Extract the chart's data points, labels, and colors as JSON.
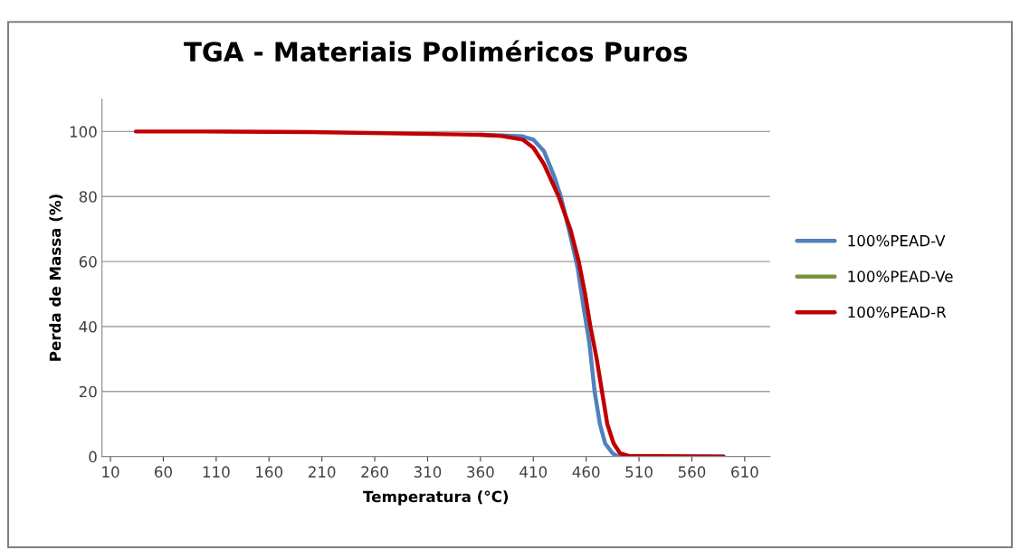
{
  "chart_data": {
    "type": "line",
    "title": "TGA - Materiais Poliméricos Puros",
    "xlabel": "Temperatura (°C)",
    "ylabel": "Perda de Massa (%)",
    "xlim": [
      2,
      634
    ],
    "xticks": [
      10,
      60,
      110,
      160,
      210,
      260,
      310,
      360,
      410,
      460,
      510,
      560,
      610
    ],
    "ylim": [
      0,
      110
    ],
    "yticks": [
      0,
      20,
      40,
      60,
      80,
      100
    ],
    "grid": "y",
    "legend": "right",
    "marker": "none",
    "line_style": "solid",
    "series": [
      {
        "name": "100%PEAD-V",
        "color": "#4f81bd",
        "x": [
          360,
          380,
          400,
          410,
          420,
          430,
          436,
          445,
          452,
          458,
          463,
          468,
          473,
          478,
          485,
          490,
          590
        ],
        "values": [
          99,
          98.8,
          98.5,
          97.5,
          94,
          86,
          80,
          68,
          58,
          45,
          35,
          20,
          10,
          4,
          1,
          0,
          0
        ]
      },
      {
        "name": "100%PEAD-Ve",
        "color": "#77933c"
      },
      {
        "name": "100%PEAD-R",
        "color": "#c00000",
        "x": [
          34,
          100,
          200,
          300,
          360,
          380,
          400,
          410,
          420,
          434,
          445,
          453,
          459,
          464,
          470,
          475,
          480,
          486,
          492,
          500,
          590
        ],
        "values": [
          100,
          100,
          99.8,
          99.3,
          99,
          98.6,
          97.5,
          95,
          90,
          80,
          70,
          60,
          50,
          40,
          30,
          20,
          10,
          4,
          1,
          0.2,
          0
        ]
      }
    ]
  }
}
